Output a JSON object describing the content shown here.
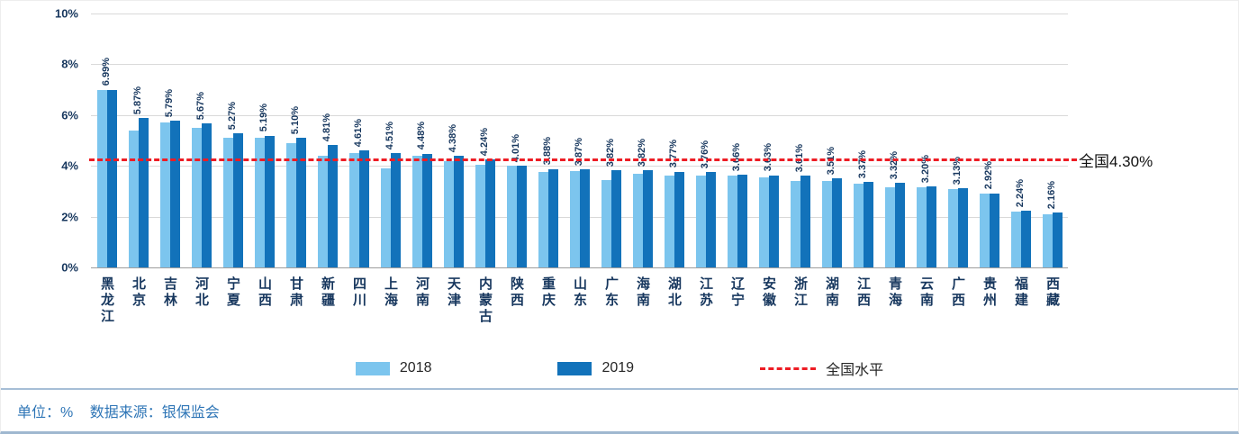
{
  "chart_data": {
    "type": "bar",
    "title": "",
    "unit": "%",
    "categories": [
      "黑龙江",
      "北京",
      "吉林",
      "河北",
      "宁夏",
      "山西",
      "甘肃",
      "新疆",
      "四川",
      "上海",
      "河南",
      "天津",
      "内蒙古",
      "陕西",
      "重庆",
      "山东",
      "广东",
      "海南",
      "湖北",
      "江苏",
      "辽宁",
      "安徽",
      "浙江",
      "湖南",
      "江西",
      "青海",
      "云南",
      "广西",
      "贵州",
      "福建",
      "西藏"
    ],
    "labels": [
      "6.99%",
      "5.87%",
      "5.79%",
      "5.67%",
      "5.27%",
      "5.19%",
      "5.10%",
      "4.81%",
      "4.61%",
      "4.51%",
      "4.48%",
      "4.38%",
      "4.24%",
      "4.01%",
      "3.88%",
      "3.87%",
      "3.82%",
      "3.82%",
      "3.77%",
      "3.76%",
      "3.66%",
      "3.63%",
      "3.61%",
      "3.51%",
      "3.37%",
      "3.32%",
      "3.20%",
      "3.13%",
      "2.92%",
      "2.24%",
      "2.16%"
    ],
    "series": [
      {
        "name": "2018",
        "values": [
          7.0,
          5.4,
          5.7,
          5.5,
          5.1,
          5.1,
          4.9,
          4.4,
          4.5,
          3.9,
          4.4,
          4.2,
          4.05,
          4.0,
          3.75,
          3.8,
          3.45,
          3.7,
          3.6,
          3.6,
          3.6,
          3.55,
          3.4,
          3.4,
          3.3,
          3.15,
          3.15,
          3.1,
          2.9,
          2.2,
          2.1
        ]
      },
      {
        "name": "2019",
        "values": [
          6.99,
          5.87,
          5.79,
          5.67,
          5.27,
          5.19,
          5.1,
          4.81,
          4.61,
          4.51,
          4.48,
          4.38,
          4.24,
          4.01,
          3.88,
          3.87,
          3.82,
          3.82,
          3.77,
          3.76,
          3.66,
          3.63,
          3.61,
          3.51,
          3.37,
          3.32,
          3.2,
          3.13,
          2.92,
          2.24,
          2.16
        ]
      }
    ],
    "ylim": [
      0,
      10
    ],
    "yticks": [
      "0%",
      "2%",
      "4%",
      "6%",
      "8%",
      "10%"
    ],
    "grid": true,
    "legend_position": "bottom",
    "national": {
      "value": 4.3,
      "label": "全国4.30%"
    }
  },
  "legend": {
    "item_2018": "2018",
    "item_2019": "2019",
    "item_national": "全国水平"
  },
  "footer": {
    "unit": "单位：%",
    "source": "数据来源：银保监会"
  },
  "colors": {
    "bar-2018": "#7CC5EE",
    "bar-2019": "#1272BA",
    "national-line": "#ED1C24",
    "axis-text": "#17375E",
    "footer-text": "#2E75B6",
    "gridline": "#D9D9D9"
  }
}
